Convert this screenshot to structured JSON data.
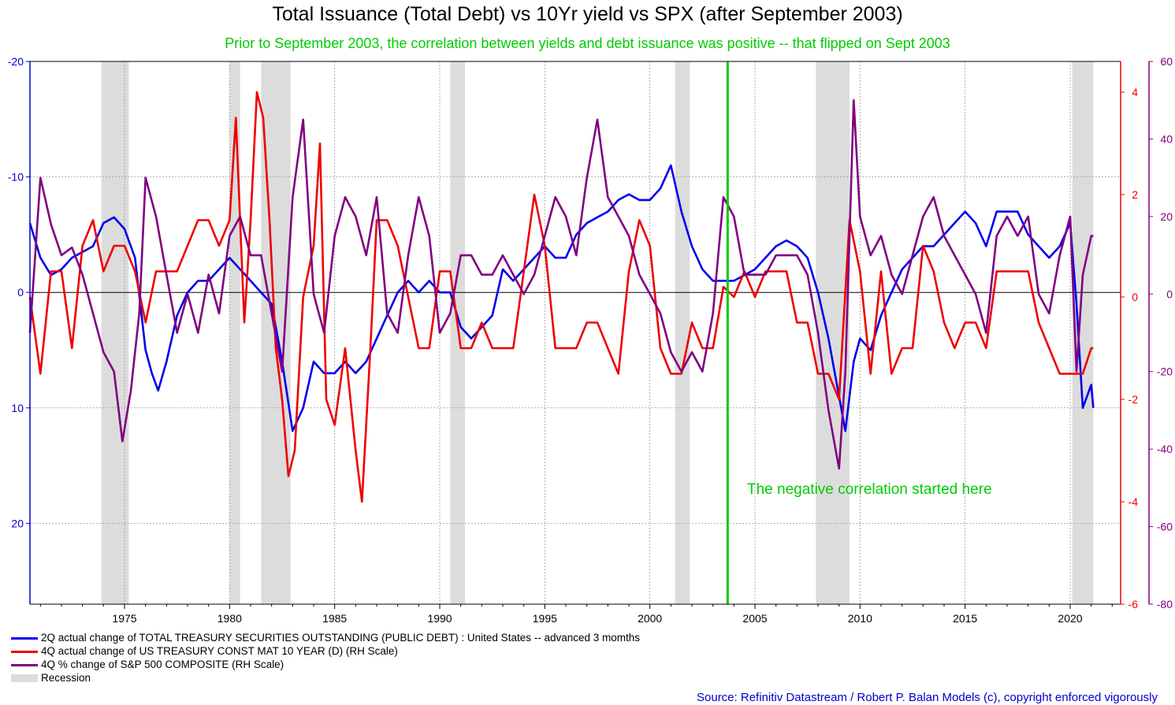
{
  "chart_data": {
    "type": "line",
    "title": "Total Issuance (Total Debt) vs 10Yr yield vs SPX (after September 2003)",
    "subtitle": "Prior to September 2003, the correlation between yields and debt issuance was positive -- that flipped on Sept 2003",
    "annotation": "The negative correlation started here",
    "source": "Source: Refinitiv Datastream / Robert P. Balan Models (c), copyright enforced vigorously",
    "x_range": [
      1970.5,
      2022.4
    ],
    "x_ticks": [
      "1975",
      "1980",
      "1985",
      "1990",
      "1995",
      "2000",
      "2005",
      "2010",
      "2015",
      "2020"
    ],
    "y_left": {
      "min": -20,
      "max": 27,
      "inverted": true,
      "ticks": [
        "-20",
        "-10",
        "0",
        "10",
        "20"
      ],
      "color": "#0000cc"
    },
    "y_right_red": {
      "min": -6,
      "max": 4.6,
      "ticks": [
        "4",
        "2",
        "0",
        "-2",
        "-4",
        "-6"
      ],
      "color": "#ee0000"
    },
    "y_right_purple": {
      "min": -80,
      "max": 60,
      "ticks": [
        "60",
        "40",
        "20",
        "0",
        "-20",
        "-40",
        "-60",
        "-80"
      ],
      "color": "#800080"
    },
    "vertical_marker": {
      "x": 2003.7,
      "color": "#00cc00"
    },
    "grid": true,
    "recessions": [
      [
        1973.9,
        1975.2
      ],
      [
        1980.0,
        1980.5
      ],
      [
        1981.5,
        1982.9
      ],
      [
        1990.5,
        1991.2
      ],
      [
        2001.2,
        2001.9
      ],
      [
        2007.9,
        2009.5
      ],
      [
        2020.1,
        2021.1
      ]
    ],
    "series": [
      {
        "name": "2Q actual change of TOTAL TREASURY SECURITIES OUTSTANDING (PUBLIC DEBT) : United States -- advanced 3 momths",
        "color": "#0000ee",
        "axis": "y_left",
        "x": [
          1970.5,
          1971,
          1971.5,
          1972,
          1972.5,
          1973,
          1973.5,
          1974,
          1974.5,
          1975,
          1975.5,
          1976,
          1976.3,
          1976.6,
          1977,
          1977.5,
          1978,
          1978.5,
          1979,
          1979.5,
          1980,
          1980.5,
          1981,
          1981.5,
          1982,
          1982.5,
          1983,
          1983.5,
          1984,
          1984.5,
          1985,
          1985.5,
          1986,
          1986.5,
          1987,
          1987.5,
          1988,
          1988.5,
          1989,
          1989.5,
          1990,
          1990.5,
          1991,
          1991.5,
          1992,
          1992.5,
          1993,
          1993.5,
          1994,
          1994.5,
          1995,
          1995.5,
          1996,
          1996.5,
          1997,
          1997.5,
          1998,
          1998.5,
          1999,
          1999.5,
          2000,
          2000.5,
          2001,
          2001.5,
          2002,
          2002.5,
          2003,
          2003.5,
          2004,
          2004.5,
          2005,
          2005.5,
          2006,
          2006.5,
          2007,
          2007.5,
          2008,
          2008.5,
          2009,
          2009.3,
          2009.7,
          2010,
          2010.5,
          2011,
          2011.5,
          2012,
          2012.5,
          2013,
          2013.5,
          2014,
          2014.5,
          2015,
          2015.5,
          2016,
          2016.5,
          2017,
          2017.5,
          2018,
          2018.5,
          2019,
          2019.5,
          2020,
          2020.3,
          2020.6,
          2021,
          2021.1
        ],
        "y": [
          -6,
          -3,
          -1.5,
          -2,
          -3,
          -3.5,
          -4,
          -6,
          -6.5,
          -5.5,
          -3,
          5,
          7,
          8.5,
          6,
          2,
          0,
          -1,
          -1,
          -2,
          -3,
          -2,
          -1,
          0,
          1,
          6,
          12,
          10,
          6,
          7,
          7,
          6,
          7,
          6,
          4,
          2,
          0,
          -1,
          0,
          -1,
          0,
          0,
          3,
          4,
          3,
          2,
          -2,
          -1,
          -2,
          -3,
          -4,
          -3,
          -3,
          -5,
          -6,
          -6.5,
          -7,
          -8,
          -8.5,
          -8,
          -8,
          -9,
          -11,
          -7,
          -4,
          -2,
          -1,
          -1,
          -1,
          -1.5,
          -2,
          -3,
          -4,
          -4.5,
          -4,
          -3,
          0,
          4,
          9,
          12,
          6,
          4,
          5,
          2,
          0,
          -2,
          -3,
          -4,
          -4,
          -5,
          -6,
          -7,
          -6,
          -4,
          -7,
          -7,
          -7,
          -5,
          -4,
          -3,
          -4,
          -6,
          1,
          10,
          8,
          10
        ]
      },
      {
        "name": "4Q actual change of US TREASURY CONST MAT 10 YEAR (D) (RH Scale)",
        "color": "#ee0000",
        "axis": "y_right_red",
        "x": [
          1970.5,
          1971,
          1971.5,
          1972,
          1972.5,
          1973,
          1973.5,
          1974,
          1974.5,
          1975,
          1975.5,
          1976,
          1976.5,
          1977,
          1977.5,
          1978,
          1978.5,
          1979,
          1979.5,
          1980,
          1980.3,
          1980.7,
          1981,
          1981.3,
          1981.6,
          1981.9,
          1982.2,
          1982.5,
          1982.8,
          1983.1,
          1983.5,
          1984,
          1984.3,
          1984.6,
          1985,
          1985.5,
          1986,
          1986.3,
          1986.7,
          1987,
          1987.5,
          1988,
          1988.5,
          1989,
          1989.5,
          1990,
          1990.5,
          1991,
          1991.5,
          1992,
          1992.5,
          1993,
          1993.5,
          1994,
          1994.5,
          1995,
          1995.5,
          1996,
          1996.5,
          1997,
          1997.5,
          1998,
          1998.5,
          1999,
          1999.5,
          2000,
          2000.5,
          2001,
          2001.5,
          2002,
          2002.5,
          2003,
          2003.5,
          2004,
          2004.5,
          2005,
          2005.5,
          2006,
          2006.5,
          2007,
          2007.5,
          2008,
          2008.5,
          2009,
          2009.5,
          2010,
          2010.5,
          2011,
          2011.5,
          2012,
          2012.5,
          2013,
          2013.5,
          2014,
          2014.5,
          2015,
          2015.5,
          2016,
          2016.5,
          2017,
          2017.5,
          2018,
          2018.5,
          2019,
          2019.5,
          2020,
          2020.3,
          2020.6,
          2021,
          2021.1
        ],
        "y": [
          0,
          -1.5,
          0.5,
          0.5,
          -1,
          1,
          1.5,
          0.5,
          1,
          1,
          0.5,
          -0.5,
          0.5,
          0.5,
          0.5,
          1,
          1.5,
          1.5,
          1,
          1.5,
          3.5,
          -0.5,
          1.5,
          4,
          3.5,
          1.5,
          -1,
          -2,
          -3.5,
          -3,
          0,
          1,
          3,
          -2,
          -2.5,
          -1,
          -3,
          -4,
          -1,
          1.5,
          1.5,
          1,
          0,
          -1,
          -1,
          0.5,
          0.5,
          -1,
          -1,
          -0.5,
          -1,
          -1,
          -1,
          0.5,
          2,
          1,
          -1,
          -1,
          -1,
          -0.5,
          -0.5,
          -1,
          -1.5,
          0.5,
          1.5,
          1,
          -1,
          -1.5,
          -1.5,
          -0.5,
          -1,
          -1,
          0.2,
          0,
          0.5,
          0,
          0.5,
          0.5,
          0.5,
          -0.5,
          -0.5,
          -1.5,
          -1.5,
          -2,
          1.5,
          0.5,
          -1.5,
          0.5,
          -1.5,
          -1,
          -1,
          1,
          0.5,
          -0.5,
          -1,
          -0.5,
          -0.5,
          -1,
          0.5,
          0.5,
          0.5,
          0.5,
          -0.5,
          -1,
          -1.5,
          -1.5,
          -1.5,
          -1.5,
          -1,
          -1
        ]
      },
      {
        "name": "4Q % change of S&P 500 COMPOSITE (RH Scale)",
        "color": "#800080",
        "axis": "y_right_purple",
        "x": [
          1970.5,
          1971,
          1971.5,
          1972,
          1972.5,
          1973,
          1973.5,
          1974,
          1974.5,
          1974.9,
          1975.3,
          1975.7,
          1976,
          1976.5,
          1977,
          1977.5,
          1978,
          1978.5,
          1979,
          1979.5,
          1980,
          1980.5,
          1981,
          1981.5,
          1982,
          1982.5,
          1983,
          1983.5,
          1984,
          1984.5,
          1985,
          1985.5,
          1986,
          1986.5,
          1987,
          1987.5,
          1988,
          1988.5,
          1989,
          1989.5,
          1990,
          1990.5,
          1991,
          1991.5,
          1992,
          1992.5,
          1993,
          1993.5,
          1994,
          1994.5,
          1995,
          1995.5,
          1996,
          1996.5,
          1997,
          1997.5,
          1998,
          1998.5,
          1999,
          1999.5,
          2000,
          2000.5,
          2001,
          2001.5,
          2002,
          2002.5,
          2003,
          2003.5,
          2004,
          2004.5,
          2005,
          2005.5,
          2006,
          2006.5,
          2007,
          2007.5,
          2008,
          2008.5,
          2009,
          2009.3,
          2009.7,
          2010,
          2010.5,
          2011,
          2011.5,
          2012,
          2012.5,
          2013,
          2013.5,
          2014,
          2014.5,
          2015,
          2015.5,
          2016,
          2016.5,
          2017,
          2017.5,
          2018,
          2018.5,
          2019,
          2019.5,
          2020,
          2020.3,
          2020.6,
          2021,
          2021.1
        ],
        "y": [
          -10,
          30,
          18,
          10,
          12,
          5,
          -5,
          -15,
          -20,
          -38,
          -25,
          -5,
          30,
          20,
          5,
          -10,
          0,
          -10,
          5,
          -5,
          15,
          20,
          10,
          10,
          -5,
          -20,
          25,
          45,
          0,
          -10,
          15,
          25,
          20,
          10,
          25,
          -5,
          -10,
          10,
          25,
          15,
          -10,
          -5,
          10,
          10,
          5,
          5,
          10,
          5,
          0,
          5,
          15,
          25,
          20,
          10,
          30,
          45,
          25,
          20,
          15,
          5,
          0,
          -5,
          -15,
          -20,
          -15,
          -20,
          -5,
          25,
          20,
          5,
          5,
          5,
          10,
          10,
          10,
          5,
          -10,
          -30,
          -45,
          -20,
          50,
          20,
          10,
          15,
          5,
          0,
          10,
          20,
          25,
          15,
          10,
          5,
          0,
          -10,
          15,
          20,
          15,
          20,
          0,
          -5,
          10,
          20,
          -20,
          5,
          15,
          15
        ]
      }
    ],
    "legend": [
      {
        "label": "2Q actual change of TOTAL TREASURY SECURITIES OUTSTANDING (PUBLIC DEBT) : United States -- advanced 3 momths",
        "color": "#0000ee",
        "kind": "line"
      },
      {
        "label": "4Q actual change of US TREASURY CONST MAT 10 YEAR (D) (RH Scale)",
        "color": "#ee0000",
        "kind": "line"
      },
      {
        "label": "4Q % change of S&P 500 COMPOSITE (RH Scale)",
        "color": "#800080",
        "kind": "line"
      },
      {
        "label": "Recession",
        "color": "#dcdcdc",
        "kind": "box"
      }
    ]
  }
}
